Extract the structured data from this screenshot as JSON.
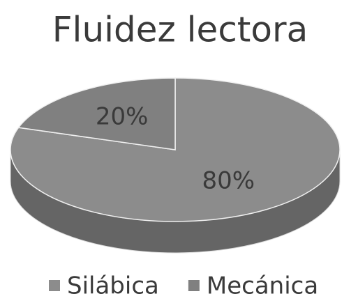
{
  "chart_data": {
    "type": "pie3d",
    "title": "Fluidez lectora",
    "categories": [
      "Silábica",
      "Mecánica"
    ],
    "values": [
      80,
      20
    ],
    "value_labels": [
      "80%",
      "20%"
    ],
    "colors": [
      "#8c8c8c",
      "#808080"
    ],
    "legend": "bottom"
  }
}
